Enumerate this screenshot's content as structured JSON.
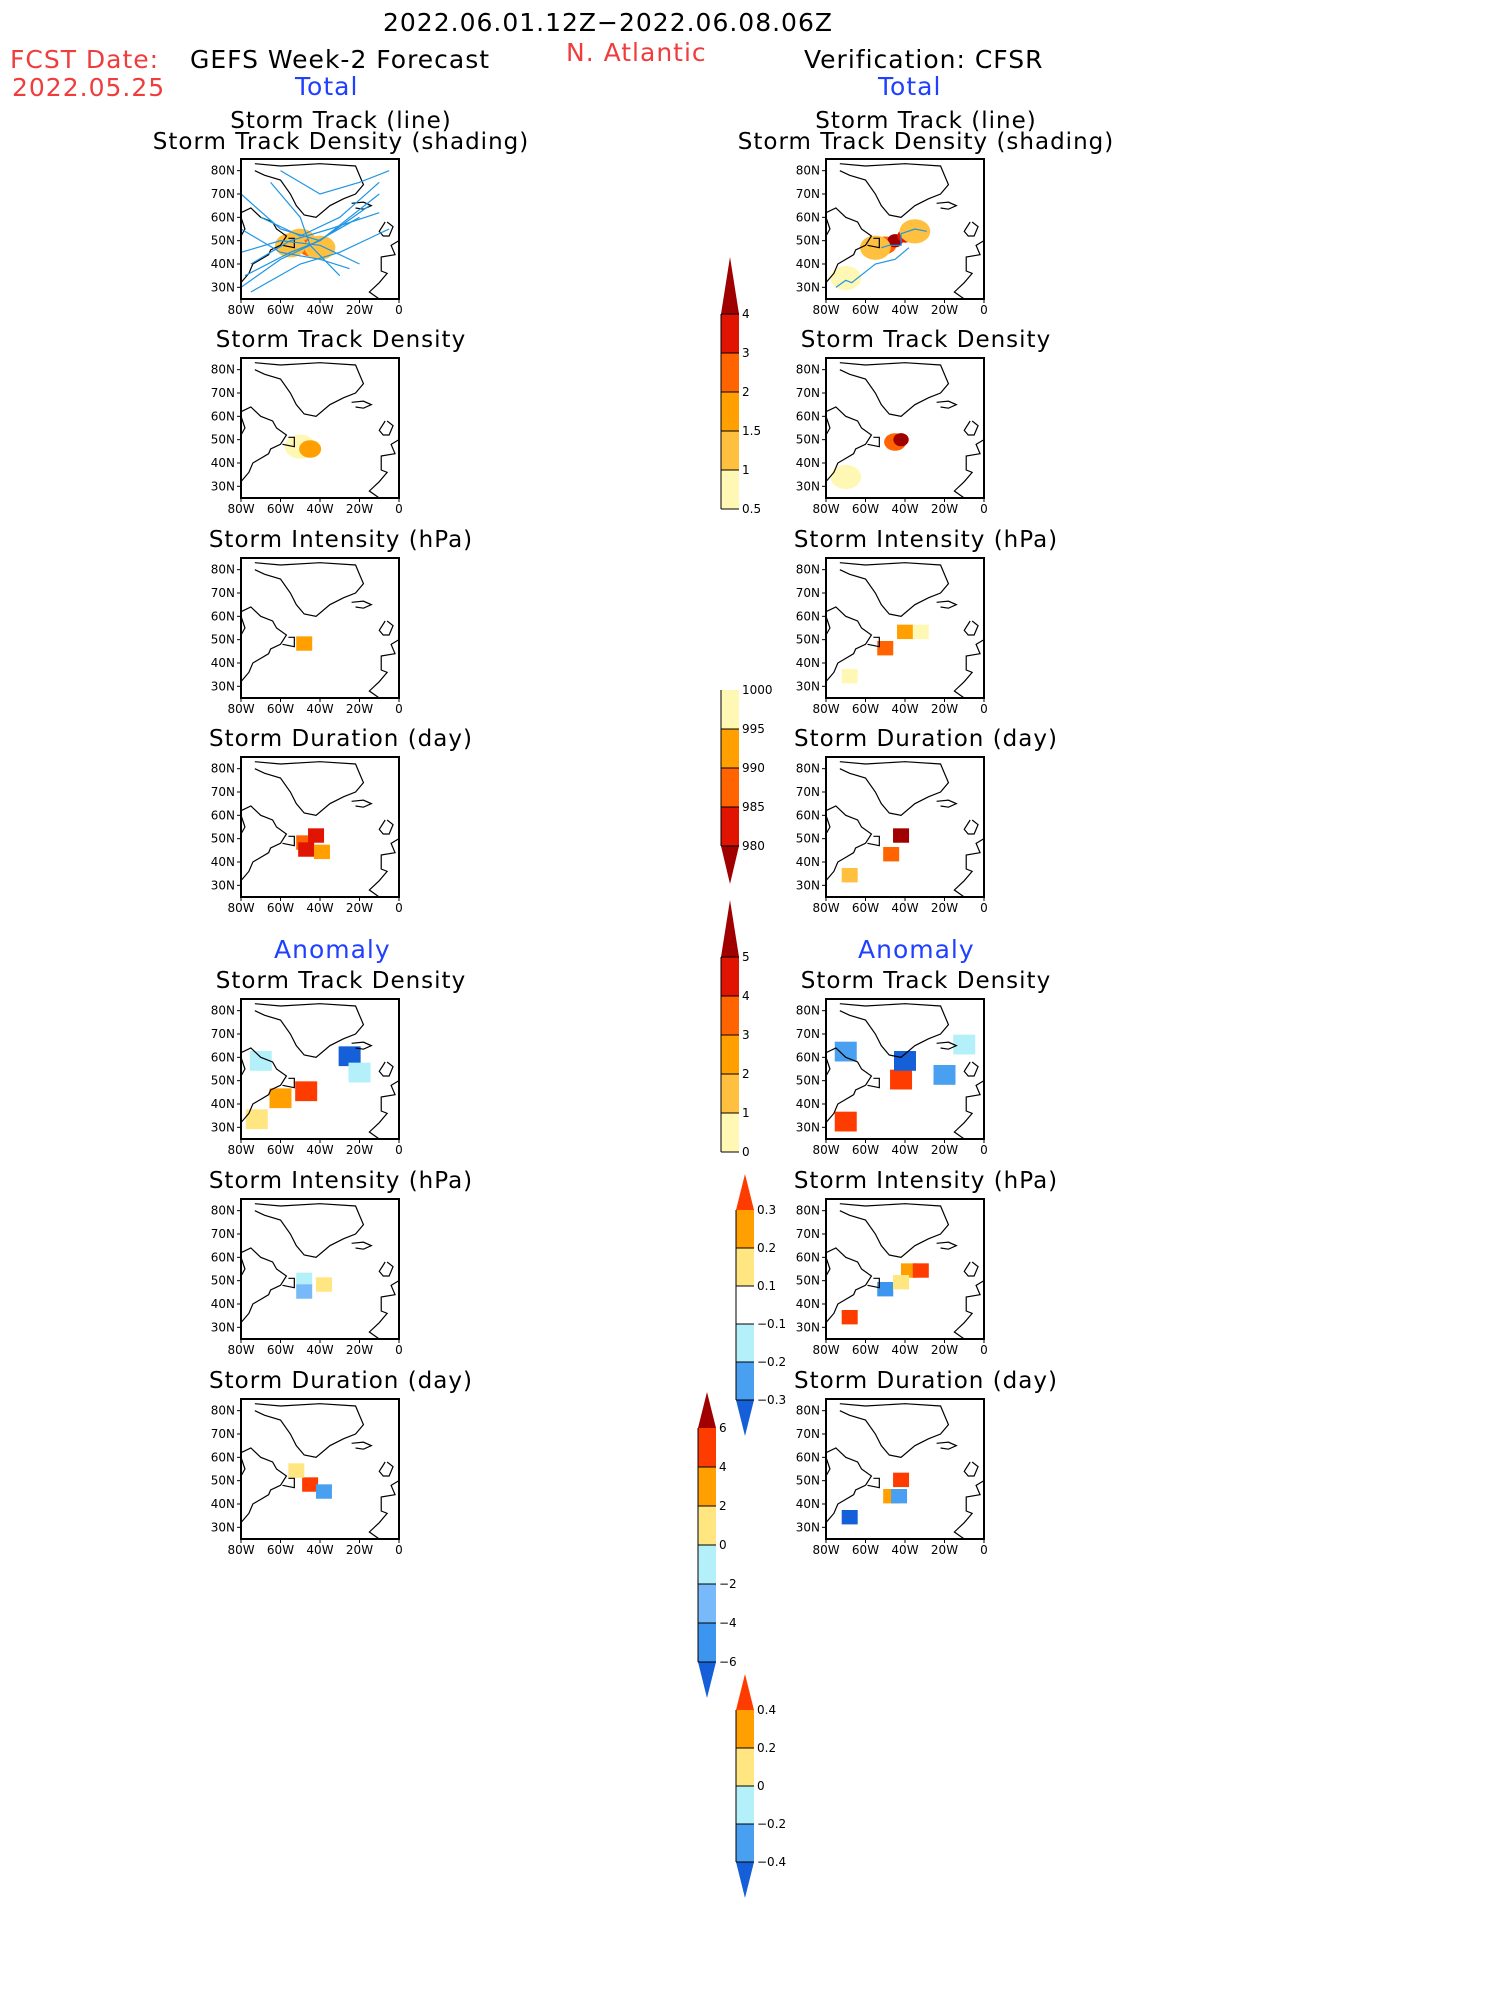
{
  "header": {
    "period": "2022.06.01.12Z−2022.06.08.06Z",
    "fcst_label": "FCST Date:",
    "fcst_date": "2022.05.25",
    "region": "N. Atlantic",
    "left_title": "GEFS Week-2 Forecast",
    "right_title": "Verification: CFSR",
    "total_label": "Total",
    "anomaly_label": "Anomaly"
  },
  "colors": {
    "ramp_total": [
      "#fff8b4",
      "#ffc040",
      "#ffa000",
      "#ff6400",
      "#e01400",
      "#a00000"
    ],
    "ramp_anom": [
      "#1560d8",
      "#4aa0f0",
      "#b4f0fa",
      "#ffffff",
      "#ffe680",
      "#ffa000",
      "#ff3c00"
    ],
    "ramp_int_anom": [
      "#1560d8",
      "#3c96f0",
      "#78b9fa",
      "#b4f0fa",
      "#ffe680",
      "#ffa000",
      "#ff3c00",
      "#a00000"
    ],
    "track": "#1e96e6"
  },
  "axes": {
    "lon_ticks": [
      "80W",
      "60W",
      "40W",
      "20W",
      "0"
    ],
    "lat_ticks": [
      "80N",
      "70N",
      "60N",
      "50N",
      "40N",
      "30N"
    ]
  },
  "colorbars": [
    {
      "id": "density",
      "levels": [
        "0.5",
        "1",
        "1.5",
        "2",
        "3",
        "4"
      ]
    },
    {
      "id": "intensity",
      "levels": [
        "1000",
        "995",
        "990",
        "985",
        "980"
      ]
    },
    {
      "id": "duration",
      "levels": [
        "0",
        "1",
        "2",
        "3",
        "4",
        "5"
      ]
    },
    {
      "id": "density_anom",
      "levels": [
        "0.3",
        "0.2",
        "0.1",
        "−0.1",
        "−0.2",
        "−0.3"
      ]
    },
    {
      "id": "intensity_anom",
      "levels": [
        "6",
        "4",
        "2",
        "0",
        "−2",
        "−4",
        "−6"
      ]
    },
    {
      "id": "duration_anom",
      "levels": [
        "0.4",
        "0.2",
        "0",
        "−0.2",
        "−0.4"
      ]
    }
  ],
  "chart_data": [
    {
      "type": "heatmap",
      "panel": "forecast-track",
      "title": "Storm Track (line)\nStorm Track Density (shading)",
      "title_line1": "Storm Track (line)",
      "title_line2": "Storm Track Density (shading)",
      "xlim": [
        -80,
        0
      ],
      "ylim": [
        25,
        85
      ],
      "cells": [
        [
          -50,
          50,
          1
        ],
        [
          -45,
          47,
          2
        ],
        [
          -40,
          47,
          1
        ],
        [
          -55,
          48,
          1
        ]
      ],
      "tracks": [
        [
          [
            -80,
            30
          ],
          [
            -60,
            42
          ],
          [
            -45,
            48
          ],
          [
            -20,
            60
          ]
        ],
        [
          [
            -78,
            35
          ],
          [
            -55,
            45
          ],
          [
            -40,
            50
          ],
          [
            -10,
            70
          ]
        ],
        [
          [
            -75,
            28
          ],
          [
            -50,
            40
          ],
          [
            -30,
            45
          ],
          [
            -5,
            55
          ]
        ],
        [
          [
            -70,
            60
          ],
          [
            -50,
            52
          ],
          [
            -30,
            60
          ],
          [
            -10,
            75
          ]
        ],
        [
          [
            -80,
            45
          ],
          [
            -60,
            50
          ],
          [
            -40,
            48
          ],
          [
            -20,
            40
          ]
        ],
        [
          [
            -65,
            75
          ],
          [
            -50,
            60
          ],
          [
            -45,
            48
          ],
          [
            -30,
            35
          ]
        ],
        [
          [
            -80,
            70
          ],
          [
            -60,
            55
          ],
          [
            -40,
            50
          ],
          [
            -15,
            65
          ]
        ],
        [
          [
            -75,
            40
          ],
          [
            -55,
            50
          ],
          [
            -35,
            55
          ],
          [
            -10,
            62
          ]
        ],
        [
          [
            -80,
            55
          ],
          [
            -60,
            45
          ],
          [
            -40,
            42
          ],
          [
            -25,
            38
          ]
        ],
        [
          [
            -60,
            80
          ],
          [
            -40,
            70
          ],
          [
            -20,
            75
          ],
          [
            -5,
            80
          ]
        ]
      ]
    },
    {
      "type": "heatmap",
      "panel": "verification-track",
      "title": "Storm Track (line)\nStorm Track Density (shading)",
      "title_line1": "Storm Track (line)",
      "title_line2": "Storm Track Density (shading)",
      "xlim": [
        -80,
        0
      ],
      "ylim": [
        25,
        85
      ],
      "cells": [
        [
          -50,
          48,
          2
        ],
        [
          -45,
          50,
          4
        ],
        [
          -40,
          52,
          3
        ],
        [
          -35,
          54,
          1
        ],
        [
          -55,
          47,
          1
        ],
        [
          -70,
          34,
          0.5
        ]
      ],
      "tracks": [
        [
          [
            -75,
            30
          ],
          [
            -70,
            33
          ],
          [
            -67,
            32
          ],
          [
            -55,
            40
          ],
          [
            -45,
            42
          ],
          [
            -38,
            47
          ]
        ],
        [
          [
            -52,
            47
          ],
          [
            -48,
            48
          ],
          [
            -42,
            48
          ],
          [
            -42,
            53
          ],
          [
            -35,
            55
          ],
          [
            -29,
            54
          ]
        ]
      ]
    },
    {
      "type": "heatmap",
      "panel": "forecast-density",
      "title": "Storm Track Density",
      "xlim": [
        -80,
        0
      ],
      "ylim": [
        25,
        85
      ],
      "cells": [
        [
          -50,
          47,
          0.5
        ],
        [
          -45,
          46,
          1.5
        ]
      ]
    },
    {
      "type": "heatmap",
      "panel": "verification-density",
      "title": "Storm Track Density",
      "xlim": [
        -80,
        0
      ],
      "ylim": [
        25,
        85
      ],
      "cells": [
        [
          -45,
          49,
          2
        ],
        [
          -42,
          50,
          4
        ],
        [
          -70,
          34,
          0.5
        ]
      ]
    },
    {
      "type": "heatmap",
      "panel": "forecast-intensity",
      "title": "Storm Intensity (hPa)",
      "xlim": [
        -80,
        0
      ],
      "ylim": [
        25,
        85
      ],
      "cells": [
        [
          -48,
          48,
          992
        ]
      ]
    },
    {
      "type": "heatmap",
      "panel": "verification-intensity",
      "title": "Storm Intensity (hPa)",
      "xlim": [
        -80,
        0
      ],
      "ylim": [
        25,
        85
      ],
      "cells": [
        [
          -50,
          46,
          988
        ],
        [
          -40,
          53,
          992
        ],
        [
          -32,
          53,
          998
        ],
        [
          -68,
          34,
          998
        ]
      ]
    },
    {
      "type": "heatmap",
      "panel": "forecast-duration",
      "title": "Storm Duration (day)",
      "xlim": [
        -80,
        0
      ],
      "ylim": [
        25,
        85
      ],
      "cells": [
        [
          -48,
          48,
          3.5
        ],
        [
          -42,
          51,
          4.5
        ],
        [
          -47,
          45,
          4.5
        ],
        [
          -39,
          44,
          2.5
        ]
      ]
    },
    {
      "type": "heatmap",
      "panel": "verification-duration",
      "title": "Storm Duration (day)",
      "xlim": [
        -80,
        0
      ],
      "ylim": [
        25,
        85
      ],
      "cells": [
        [
          -42,
          51,
          5.5
        ],
        [
          -47,
          43,
          3.5
        ],
        [
          -68,
          34,
          1.5
        ]
      ]
    },
    {
      "type": "heatmap",
      "panel": "forecast-density-anom",
      "title": "Storm Track Density",
      "xlim": [
        -80,
        0
      ],
      "ylim": [
        25,
        85
      ],
      "cells": [
        [
          -47,
          45,
          0.35
        ],
        [
          -60,
          42,
          0.25
        ],
        [
          -72,
          33,
          0.15
        ],
        [
          -25,
          60,
          -0.35
        ],
        [
          -70,
          58,
          -0.15
        ],
        [
          -20,
          53,
          -0.15
        ]
      ]
    },
    {
      "type": "heatmap",
      "panel": "verification-density-anom",
      "title": "Storm Track Density",
      "xlim": [
        -80,
        0
      ],
      "ylim": [
        25,
        85
      ],
      "cells": [
        [
          -42,
          50,
          0.35
        ],
        [
          -70,
          32,
          0.35
        ],
        [
          -40,
          58,
          -0.35
        ],
        [
          -70,
          62,
          -0.3
        ],
        [
          -20,
          52,
          -0.25
        ],
        [
          -10,
          65,
          -0.15
        ]
      ]
    },
    {
      "type": "heatmap",
      "panel": "forecast-intensity-anom",
      "title": "Storm Intensity (hPa)",
      "xlim": [
        -80,
        0
      ],
      "ylim": [
        25,
        85
      ],
      "cells": [
        [
          -48,
          50,
          -1
        ],
        [
          -48,
          45,
          -3
        ],
        [
          -38,
          48,
          1
        ]
      ]
    },
    {
      "type": "heatmap",
      "panel": "verification-intensity-anom",
      "title": "Storm Intensity (hPa)",
      "xlim": [
        -80,
        0
      ],
      "ylim": [
        25,
        85
      ],
      "cells": [
        [
          -50,
          46,
          -5
        ],
        [
          -38,
          54,
          3
        ],
        [
          -32,
          54,
          5
        ],
        [
          -68,
          34,
          5
        ],
        [
          -42,
          49,
          1
        ]
      ]
    },
    {
      "type": "heatmap",
      "panel": "forecast-duration-anom",
      "title": "Storm Duration (day)",
      "xlim": [
        -80,
        0
      ],
      "ylim": [
        25,
        85
      ],
      "cells": [
        [
          -45,
          48,
          0.45
        ],
        [
          -52,
          54,
          0.1
        ],
        [
          -38,
          45,
          -0.3
        ]
      ]
    },
    {
      "type": "heatmap",
      "panel": "verification-duration-anom",
      "title": "Storm Duration (day)",
      "xlim": [
        -80,
        0
      ],
      "ylim": [
        25,
        85
      ],
      "cells": [
        [
          -42,
          50,
          0.45
        ],
        [
          -47,
          43,
          0.3
        ],
        [
          -43,
          43,
          -0.3
        ],
        [
          -68,
          34,
          -0.45
        ]
      ]
    }
  ]
}
